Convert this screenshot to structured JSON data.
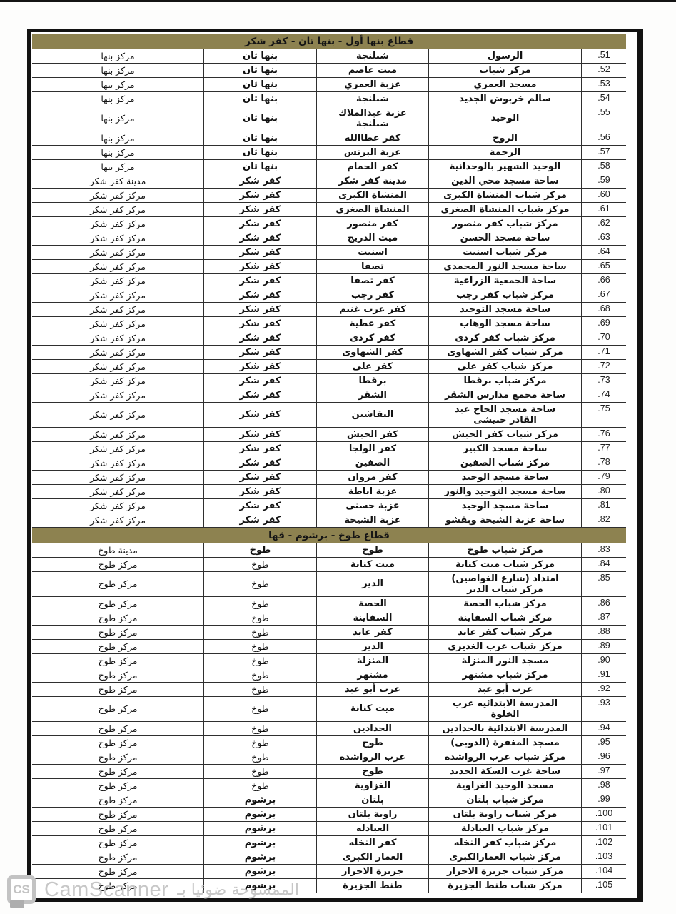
{
  "table": {
    "sections": [
      {
        "title": "قطاع بنها أول - بنها ثان - كفر شكر",
        "rows": [
          {
            "num": ".51",
            "name": "الرسول",
            "village": "شبلنجة",
            "district": "بنها ثان",
            "center": "مركز بنها"
          },
          {
            "num": ".52",
            "name": "مركز شباب",
            "village": "ميت عاصم",
            "district": "بنها ثان",
            "center": "مركز بنها"
          },
          {
            "num": ".53",
            "name": "مسجد العمري",
            "village": "عزبة العمري",
            "district": "بنها ثان",
            "center": "مركز بنها"
          },
          {
            "num": ".54",
            "name": "سالم خربوش الجديد",
            "village": "شبلنجة",
            "district": "بنها ثان",
            "center": "مركز بنها"
          },
          {
            "num": ".55",
            "name": "الوحيد",
            "village": "عزبة عبدالملاك\nشبلنجة",
            "district": "بنها ثان",
            "center": "مركز بنها",
            "tall": true
          },
          {
            "num": ".56",
            "name": "الروح",
            "village": "كفر عطاالله",
            "district": "بنها ثان",
            "center": "مركز بنها"
          },
          {
            "num": ".57",
            "name": "الرحمة",
            "village": "عزبة البرنس",
            "district": "بنها ثان",
            "center": "مركز بنها"
          },
          {
            "num": ".58",
            "name": "الوحيد الشهير بالوحدانية",
            "village": "كفر الحمام",
            "district": "بنها ثان",
            "center": "مركز بنها"
          },
          {
            "num": ".59",
            "name": "ساحة مسجد محي الدين",
            "village": "مدينة كفر شكر",
            "district": "كفر شكر",
            "center": "مدينة كفر شكر"
          },
          {
            "num": ".60",
            "name": "مركز شباب المنشاة الكبرى",
            "village": "المنشاة الكبرى",
            "district": "كفر شكر",
            "center": "مركز كفر شكر"
          },
          {
            "num": ".61",
            "name": "مركز شباب المنشاة الصغرى",
            "village": "المنشاة الصغرى",
            "district": "كفر شكر",
            "center": "مركز كفر شكر"
          },
          {
            "num": ".62",
            "name": "مركز شباب كفر منصور",
            "village": "كفر منصور",
            "district": "كفر شكر",
            "center": "مركز كفر شكر"
          },
          {
            "num": ".63",
            "name": "ساحة مسجد الحسن",
            "village": "ميت الدريج",
            "district": "كفر شكر",
            "center": "مركز كفر شكر"
          },
          {
            "num": ".64",
            "name": "مركز شباب اسنيت",
            "village": "اسنيت",
            "district": "كفر شكر",
            "center": "مركز كفر شكر"
          },
          {
            "num": ".65",
            "name": "ساحة مسجد النور المحمدى",
            "village": "تصفا",
            "district": "كفر شكر",
            "center": "مركز كفر شكر"
          },
          {
            "num": ".66",
            "name": "ساحة الجمعية الزراعية",
            "village": "كفر تصفا",
            "district": "كفر شكر",
            "center": "مركز كفر شكر"
          },
          {
            "num": ".67",
            "name": "مركز شباب كفر رجب",
            "village": "كفر رجب",
            "district": "كفر شكر",
            "center": "مركز كفر شكر"
          },
          {
            "num": ".68",
            "name": "ساحة مسجد التوحيد",
            "village": "كفر عرب غنيم",
            "district": "كفر شكر",
            "center": "مركز كفر شكر"
          },
          {
            "num": ".69",
            "name": "ساحة مسجد الوهاب",
            "village": "كفر عطية",
            "district": "كفر شكر",
            "center": "مركز كفر شكر"
          },
          {
            "num": ".70",
            "name": "مركز شباب كفر كردى",
            "village": "كفر كردى",
            "district": "كفر شكر",
            "center": "مركز كفر شكر"
          },
          {
            "num": ".71",
            "name": "مركز شباب كفر الشهاوى",
            "village": "كفر الشهاوى",
            "district": "كفر شكر",
            "center": "مركز كفر شكر"
          },
          {
            "num": ".72",
            "name": "مركز شباب كفر على",
            "village": "كفر على",
            "district": "كفر شكر",
            "center": "مركز كفر شكر"
          },
          {
            "num": ".73",
            "name": "مركز شباب برقطا",
            "village": "برقطا",
            "district": "كفر شكر",
            "center": "مركز كفر شكر"
          },
          {
            "num": ".74",
            "name": "ساحة مجمع مدارس الشقر",
            "village": "الشقر",
            "district": "كفر شكر",
            "center": "مركز كفر شكر"
          },
          {
            "num": ".75",
            "name": "ساحة مسجد الحاج عبد\nالقادر حبيشى",
            "village": "البقاشين",
            "district": "كفر شكر",
            "center": "مركز كفر شكر",
            "tall": true
          },
          {
            "num": ".76",
            "name": "مركز شباب كفر الحبش",
            "village": "كفر الحبش",
            "district": "كفر شكر",
            "center": "مركز كفر شكر"
          },
          {
            "num": ".77",
            "name": "ساحة مسجد الكبير",
            "village": "كفر الولجا",
            "district": "كفر شكر",
            "center": "مركز كفر شكر"
          },
          {
            "num": ".78",
            "name": "مركز شباب الصفين",
            "village": "الصفين",
            "district": "كفر شكر",
            "center": "مركز كفر شكر"
          },
          {
            "num": ".79",
            "name": "ساحة مسجد الوحيد",
            "village": "كفر مروان",
            "district": "كفر شكر",
            "center": "مركز كفر شكر"
          },
          {
            "num": ".80",
            "name": "ساحة مسجد التوحيد والنور",
            "village": "عزبة اباطة",
            "district": "كفر شكر",
            "center": "مركز كفر شكر"
          },
          {
            "num": ".81",
            "name": "ساحة مسجد الوحيد",
            "village": "عزبة حسنى",
            "district": "كفر شكر",
            "center": "مركز كفر شكر"
          },
          {
            "num": ".82",
            "name": "ساحة عزبة الشيخة وبقشو",
            "village": "عزبة الشيخة",
            "district": "كفر شكر",
            "center": "مركز كفر شكر"
          }
        ]
      },
      {
        "title": "قطاع طوخ - برشوم - قها",
        "rows": [
          {
            "num": ".83",
            "name": "مركز شباب طوخ",
            "village": "طوخ",
            "district": "طوخ",
            "center": "مدينة طوخ"
          },
          {
            "num": ".84",
            "name": "مركز شباب ميت كنانة",
            "village": "ميت كنانة",
            "district": "طوخ",
            "center": "مركز طوخ",
            "district_light": true
          },
          {
            "num": ".85",
            "name": "امتداد (شارع الغواصين)\nمركز شباب الدير",
            "village": "الدير",
            "district": "طوخ",
            "center": "مركز طوخ",
            "tall": true,
            "district_light": true
          },
          {
            "num": ".86",
            "name": "مركز شباب الحصة",
            "village": "الحصة",
            "district": "طوخ",
            "center": "مركز طوخ",
            "district_light": true
          },
          {
            "num": ".87",
            "name": "مركز شباب السفاينة",
            "village": "السفاينة",
            "district": "طوخ",
            "center": "مركز طوخ",
            "district_light": true
          },
          {
            "num": ".88",
            "name": "مركز شباب كفر عابد",
            "village": "كفر عابد",
            "district": "طوخ",
            "center": "مركز طوخ",
            "district_light": true
          },
          {
            "num": ".89",
            "name": "مركز شباب عرب الغديرى",
            "village": "الدير",
            "district": "طوخ",
            "center": "مركز طوخ",
            "district_light": true
          },
          {
            "num": ".90",
            "name": "مسجد النور المنزلة",
            "village": "المنزلة",
            "district": "طوخ",
            "center": "مركز طوخ",
            "district_light": true
          },
          {
            "num": ".91",
            "name": "مركز شباب مشتهر",
            "village": "مشتهر",
            "district": "طوخ",
            "center": "مركز طوخ",
            "district_light": true
          },
          {
            "num": ".92",
            "name": "عرب أبو عبد",
            "village": "عرب أبو عبد",
            "district": "طوخ",
            "center": "مركز طوخ",
            "district_light": true
          },
          {
            "num": ".93",
            "name": "المدرسة الابتدائيه عرب\nالخلوة",
            "village": "ميت كنانة",
            "district": "طوخ",
            "center": "مركز طوخ",
            "tall": true,
            "district_light": true
          },
          {
            "num": ".94",
            "name": "المدرسة الابتدائية بالحدادين",
            "village": "الحدادين",
            "district": "طوخ",
            "center": "مركز طوخ",
            "district_light": true
          },
          {
            "num": ".95",
            "name": "مسجد المغفرة (الدوبى)",
            "village": "طوخ",
            "district": "طوخ",
            "center": "مركز طوخ",
            "district_light": true
          },
          {
            "num": ".96",
            "name": "مركز شباب عرب الرواشده",
            "village": "عرب الرواشده",
            "district": "طوخ",
            "center": "مركز طوخ",
            "district_light": true
          },
          {
            "num": ".97",
            "name": "ساحة غرب السكة الحديد",
            "village": "طوخ",
            "district": "طوخ",
            "center": "مركز طوخ",
            "district_light": true
          },
          {
            "num": ".98",
            "name": "مسجد الوحيد الغزاوية",
            "village": "الغزاوية",
            "district": "طوخ",
            "center": "مركز طوخ",
            "district_light": true
          },
          {
            "num": ".99",
            "name": "مركز شباب بلتان",
            "village": "بلتان",
            "district": "برشوم",
            "center": "مركز طوخ"
          },
          {
            "num": ".100",
            "name": "مركز شباب زاوية بلتان",
            "village": "زاوية بلتان",
            "district": "برشوم",
            "center": "مركز طوخ"
          },
          {
            "num": ".101",
            "name": "مركز شباب العبادلة",
            "village": "العبادله",
            "district": "برشوم",
            "center": "مركز طوخ"
          },
          {
            "num": ".102",
            "name": "مركز شباب كفر النخله",
            "village": "كفر النخله",
            "district": "برشوم",
            "center": "مركز طوخ"
          },
          {
            "num": ".103",
            "name": "مركز شباب العمارالكبرى",
            "village": "العمار الكبرى",
            "district": "برشوم",
            "center": "مركز طوخ"
          },
          {
            "num": ".104",
            "name": "مركز شباب جزيرة الاحرار",
            "village": "جزيرة الاحرار",
            "district": "برشوم",
            "center": "مركز طوخ"
          },
          {
            "num": ".105",
            "name": "مركز شباب طنط الجزيرة",
            "village": "طنط الجزيرة",
            "district": "برشوم",
            "center": "مركز طوخ"
          }
        ]
      }
    ]
  },
  "watermark": {
    "logo_text": "CS",
    "brand": "CamScanner",
    "arabic": "الممسوحة ضوئيا بـ"
  },
  "colors": {
    "section_header_bg": "#8d8250",
    "border_dark": "#121212",
    "grid_line": "#2f2f2f",
    "watermark_gray": "#c7c7c7"
  }
}
